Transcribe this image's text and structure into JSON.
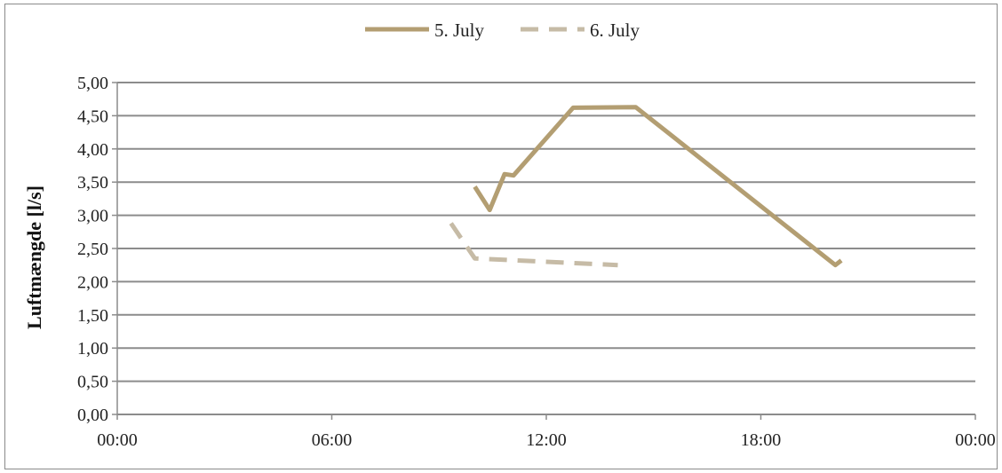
{
  "chart_data": {
    "type": "line",
    "title": "",
    "xlabel": "",
    "ylabel": "Luftmængde [l/s]",
    "xlim": [
      "00:00",
      "00:00"
    ],
    "xlim_hours": [
      0,
      24
    ],
    "ylim": [
      0,
      5
    ],
    "x_ticks": [
      "00:00",
      "06:00",
      "12:00",
      "18:00",
      "00:00"
    ],
    "y_ticks": [
      "0,00",
      "0,50",
      "1,00",
      "1,50",
      "2,00",
      "2,50",
      "3,00",
      "3,50",
      "4,00",
      "4,50",
      "5,00"
    ],
    "grid": "horizontal",
    "legend_position": "top-center",
    "series": [
      {
        "name": "5. July",
        "color": "#b39e72",
        "style": "solid",
        "x": [
          "10:00",
          "10:25",
          "10:50",
          "11:05",
          "12:45",
          "14:30",
          "20:05",
          "20:15"
        ],
        "y": [
          3.43,
          3.08,
          3.62,
          3.6,
          4.62,
          4.63,
          2.25,
          2.32
        ]
      },
      {
        "name": "6. July",
        "color": "#c6bba6",
        "style": "dashed",
        "x": [
          "09:20",
          "10:00",
          "12:00",
          "14:00"
        ],
        "y": [
          2.88,
          2.35,
          2.3,
          2.25
        ]
      }
    ]
  }
}
